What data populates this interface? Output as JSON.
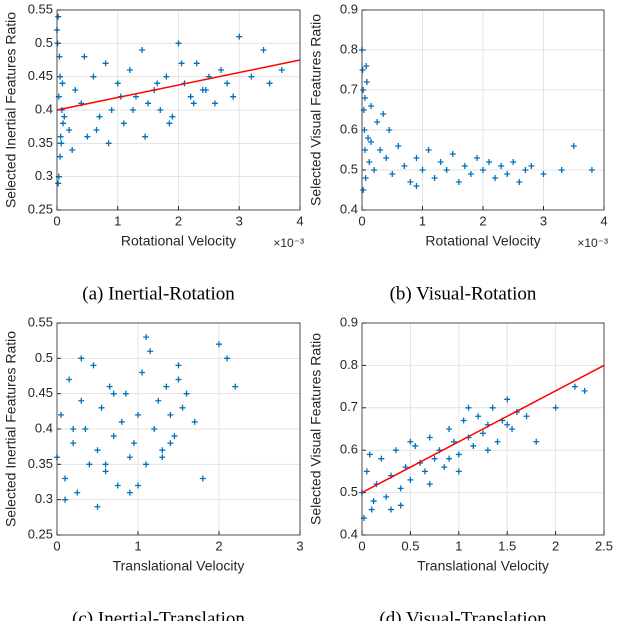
{
  "chart_data": [
    {
      "type": "scatter",
      "caption": "(a)  Inertial-Rotation",
      "xlabel": "Rotational Velocity",
      "ylabel": "Selected Inertial Features Ratio",
      "x_scale_label": "×10⁻³",
      "xlim": [
        0,
        4
      ],
      "xticks": [
        0,
        1,
        2,
        3,
        4
      ],
      "ylim": [
        0.25,
        0.55
      ],
      "yticks": [
        0.25,
        0.3,
        0.35,
        0.4,
        0.45,
        0.5,
        0.55
      ],
      "grid": true,
      "series": [
        {
          "color": "#0072bd",
          "x": [
            0,
            0.02,
            0.03,
            0.05,
            0.05,
            0.08,
            0.1,
            0.02,
            0.04,
            0.06,
            0.01,
            0.03,
            0.07,
            0.09,
            0.12,
            0.2,
            0.3,
            0.4,
            0.5,
            0.6,
            0.7,
            0.8,
            0.9,
            1.0,
            1.1,
            1.2,
            1.3,
            1.4,
            1.5,
            1.6,
            1.7,
            1.8,
            1.9,
            2.0,
            2.1,
            2.2,
            2.3,
            2.4,
            2.5,
            2.6,
            2.7,
            2.8,
            2.9,
            3.0,
            3.2,
            3.4,
            3.5,
            3.7,
            0.25,
            0.45,
            0.65,
            0.85,
            1.05,
            1.25,
            1.45,
            1.65,
            1.85,
            2.05,
            2.25,
            2.45
          ],
          "values": [
            0.52,
            0.54,
            0.3,
            0.45,
            0.33,
            0.4,
            0.38,
            0.29,
            0.48,
            0.36,
            0.5,
            0.42,
            0.35,
            0.44,
            0.39,
            0.37,
            0.43,
            0.41,
            0.36,
            0.45,
            0.39,
            0.47,
            0.4,
            0.44,
            0.38,
            0.46,
            0.42,
            0.49,
            0.41,
            0.43,
            0.4,
            0.45,
            0.39,
            0.5,
            0.44,
            0.42,
            0.47,
            0.43,
            0.45,
            0.41,
            0.46,
            0.44,
            0.42,
            0.51,
            0.45,
            0.49,
            0.44,
            0.46,
            0.34,
            0.48,
            0.37,
            0.35,
            0.42,
            0.4,
            0.36,
            0.44,
            0.38,
            0.47,
            0.41,
            0.43
          ]
        }
      ],
      "trend_line": {
        "color": "#ff0000",
        "x": [
          0,
          4
        ],
        "y": [
          0.4,
          0.475
        ]
      }
    },
    {
      "type": "scatter",
      "caption": "(b)  Visual-Rotation",
      "xlabel": "Rotational Velocity",
      "ylabel": "Selected Visual Features Ratio",
      "x_scale_label": "×10⁻³",
      "xlim": [
        0,
        4
      ],
      "xticks": [
        0,
        1,
        2,
        3,
        4
      ],
      "ylim": [
        0.4,
        0.9
      ],
      "yticks": [
        0.4,
        0.5,
        0.6,
        0.7,
        0.8,
        0.9
      ],
      "grid": true,
      "series": [
        {
          "color": "#0072bd",
          "x": [
            0,
            0.01,
            0.02,
            0.03,
            0.04,
            0.05,
            0.06,
            0.08,
            0.1,
            0.12,
            0.15,
            0.2,
            0.25,
            0.3,
            0.35,
            0.4,
            0.5,
            0.6,
            0.7,
            0.8,
            0.9,
            1.0,
            1.1,
            1.2,
            1.3,
            1.4,
            1.5,
            1.6,
            1.7,
            1.8,
            1.9,
            2.0,
            2.1,
            2.2,
            2.3,
            2.4,
            2.5,
            2.6,
            2.7,
            2.8,
            3.0,
            3.3,
            3.5,
            3.8,
            0.02,
            0.05,
            0.07,
            0.15,
            0.45,
            0.9
          ],
          "values": [
            0.8,
            0.75,
            0.7,
            0.65,
            0.6,
            0.55,
            0.48,
            0.72,
            0.58,
            0.52,
            0.66,
            0.5,
            0.62,
            0.55,
            0.64,
            0.53,
            0.49,
            0.56,
            0.51,
            0.47,
            0.53,
            0.5,
            0.55,
            0.48,
            0.52,
            0.5,
            0.54,
            0.47,
            0.51,
            0.49,
            0.53,
            0.5,
            0.52,
            0.48,
            0.51,
            0.49,
            0.52,
            0.47,
            0.5,
            0.51,
            0.49,
            0.5,
            0.56,
            0.5,
            0.45,
            0.68,
            0.76,
            0.57,
            0.6,
            0.46
          ]
        }
      ]
    },
    {
      "type": "scatter",
      "caption": "(c)  Inertial-Translation",
      "xlabel": "Translational Velocity",
      "ylabel": "Selected Inertial Features Ratio",
      "xlim": [
        0,
        3
      ],
      "xticks": [
        0,
        1,
        2,
        3
      ],
      "ylim": [
        0.25,
        0.55
      ],
      "yticks": [
        0.25,
        0.3,
        0.35,
        0.4,
        0.45,
        0.5,
        0.55
      ],
      "grid": true,
      "series": [
        {
          "color": "#0072bd",
          "x": [
            0,
            0.05,
            0.1,
            0.15,
            0.2,
            0.25,
            0.3,
            0.35,
            0.4,
            0.45,
            0.5,
            0.55,
            0.6,
            0.65,
            0.7,
            0.75,
            0.8,
            0.85,
            0.9,
            0.95,
            1.0,
            1.05,
            1.1,
            1.15,
            1.2,
            1.25,
            1.3,
            1.35,
            1.4,
            1.45,
            1.5,
            1.55,
            1.6,
            1.7,
            1.8,
            2.0,
            2.1,
            2.2,
            0.1,
            0.3,
            0.5,
            0.7,
            0.9,
            1.1,
            1.3,
            1.5,
            0.2,
            0.6,
            1.0,
            1.4
          ],
          "values": [
            0.36,
            0.42,
            0.33,
            0.47,
            0.38,
            0.31,
            0.44,
            0.4,
            0.35,
            0.49,
            0.37,
            0.43,
            0.34,
            0.46,
            0.39,
            0.32,
            0.41,
            0.45,
            0.36,
            0.38,
            0.42,
            0.48,
            0.35,
            0.51,
            0.4,
            0.44,
            0.37,
            0.46,
            0.42,
            0.39,
            0.47,
            0.43,
            0.45,
            0.41,
            0.33,
            0.52,
            0.5,
            0.46,
            0.3,
            0.5,
            0.29,
            0.45,
            0.31,
            0.53,
            0.36,
            0.49,
            0.4,
            0.35,
            0.32,
            0.38
          ]
        }
      ]
    },
    {
      "type": "scatter",
      "caption": "(d)  Visual-Translation",
      "xlabel": "Translational Velocity",
      "ylabel": "Selected Visual Features Ratio",
      "xlim": [
        0,
        2.5
      ],
      "xticks": [
        0,
        0.5,
        1,
        1.5,
        2,
        2.5
      ],
      "ylim": [
        0.4,
        0.9
      ],
      "yticks": [
        0.4,
        0.5,
        0.6,
        0.7,
        0.8,
        0.9
      ],
      "grid": true,
      "series": [
        {
          "color": "#0072bd",
          "x": [
            0,
            0.05,
            0.1,
            0.15,
            0.2,
            0.25,
            0.3,
            0.35,
            0.4,
            0.45,
            0.5,
            0.55,
            0.6,
            0.65,
            0.7,
            0.75,
            0.8,
            0.85,
            0.9,
            0.95,
            1.0,
            1.05,
            1.1,
            1.15,
            1.2,
            1.25,
            1.3,
            1.35,
            1.4,
            1.45,
            1.5,
            1.55,
            1.6,
            1.7,
            1.8,
            2.0,
            2.2,
            2.3,
            0.02,
            0.08,
            0.12,
            0.3,
            0.5,
            0.7,
            0.9,
            1.1,
            1.3,
            1.5,
            0.4,
            1.0
          ],
          "values": [
            0.5,
            0.55,
            0.46,
            0.52,
            0.58,
            0.49,
            0.54,
            0.6,
            0.51,
            0.56,
            0.53,
            0.61,
            0.57,
            0.55,
            0.63,
            0.58,
            0.6,
            0.56,
            0.65,
            0.62,
            0.59,
            0.67,
            0.63,
            0.61,
            0.68,
            0.64,
            0.66,
            0.7,
            0.62,
            0.67,
            0.72,
            0.65,
            0.69,
            0.68,
            0.62,
            0.7,
            0.75,
            0.74,
            0.44,
            0.59,
            0.48,
            0.46,
            0.62,
            0.52,
            0.58,
            0.7,
            0.6,
            0.66,
            0.47,
            0.55
          ]
        }
      ],
      "trend_line": {
        "color": "#ff0000",
        "x": [
          0,
          2.5
        ],
        "y": [
          0.5,
          0.8
        ]
      }
    }
  ]
}
